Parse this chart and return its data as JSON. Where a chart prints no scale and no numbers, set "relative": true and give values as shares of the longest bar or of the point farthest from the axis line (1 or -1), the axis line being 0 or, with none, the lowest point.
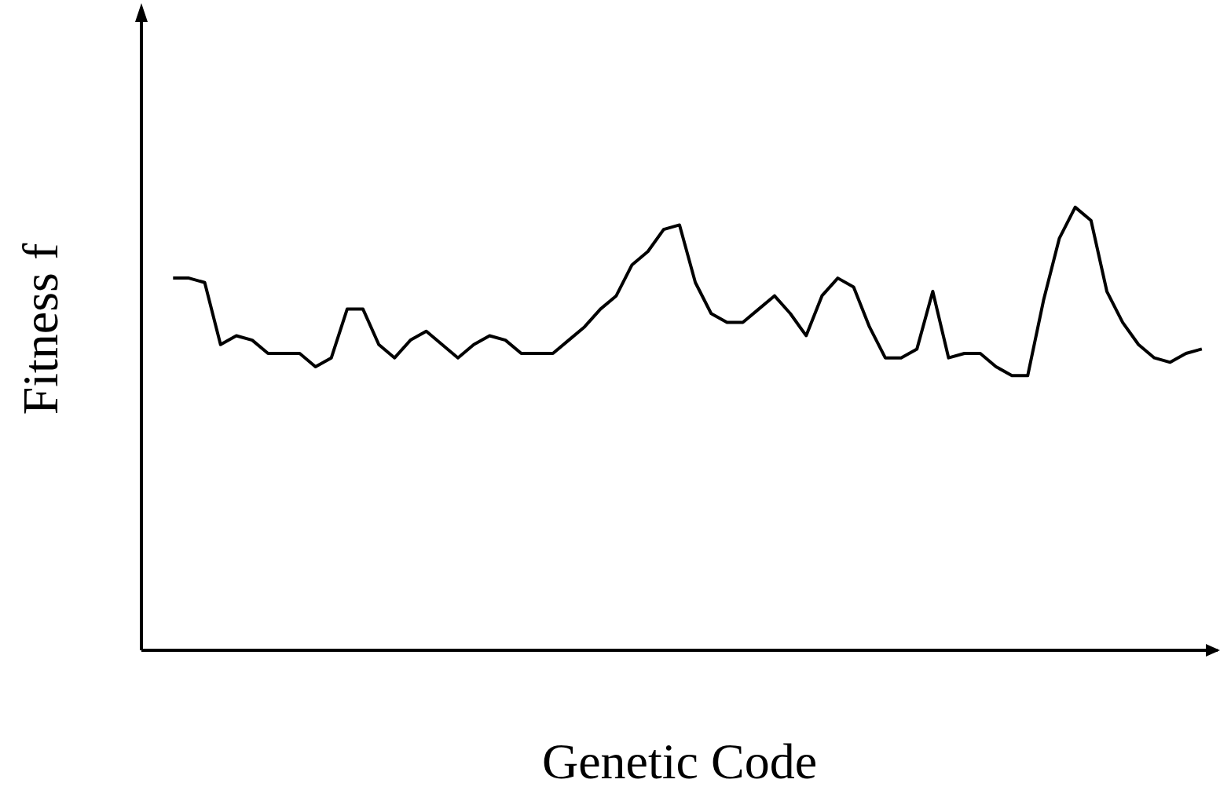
{
  "chart_data": {
    "type": "line",
    "xlabel": "Genetic Code",
    "ylabel": "Fitness  f",
    "relative": true,
    "marker": "none",
    "line_style": "solid",
    "categories": [
      null,
      null,
      null,
      null,
      null,
      null,
      null,
      null,
      null,
      null,
      null,
      null,
      null,
      null,
      null,
      null,
      null,
      null,
      null,
      null,
      null,
      null,
      null,
      null,
      null,
      null,
      null,
      null,
      null,
      null,
      null,
      null,
      null,
      null,
      null,
      null,
      null,
      null,
      null,
      null,
      null,
      null,
      null,
      null,
      null,
      null,
      null,
      null,
      null,
      null,
      null,
      null,
      null,
      null,
      null,
      null,
      null,
      null,
      null,
      null,
      null,
      null,
      null,
      null,
      null,
      null,
      null,
      null,
      null
    ],
    "series": [
      {
        "color": "#000000",
        "values": [
          null,
          null,
          0.84,
          0.84,
          0.83,
          0.69,
          0.71,
          0.7,
          0.67,
          0.67,
          0.67,
          0.64,
          0.66,
          0.77,
          0.77,
          0.69,
          0.66,
          0.7,
          0.72,
          0.69,
          0.66,
          0.69,
          0.71,
          0.7,
          0.67,
          0.67,
          0.67,
          0.7,
          0.73,
          0.77,
          0.8,
          0.87,
          0.9,
          0.95,
          0.96,
          0.83,
          0.76,
          0.74,
          0.74,
          0.77,
          0.8,
          0.76,
          0.71,
          0.8,
          0.84,
          0.82,
          0.73,
          0.66,
          0.66,
          0.68,
          0.81,
          0.66,
          0.67,
          0.67,
          0.64,
          0.62,
          0.62,
          0.79,
          0.93,
          1.0,
          0.97,
          0.81,
          0.74,
          0.69,
          0.66,
          0.65,
          0.67,
          0.68,
          null
        ]
      }
    ]
  }
}
